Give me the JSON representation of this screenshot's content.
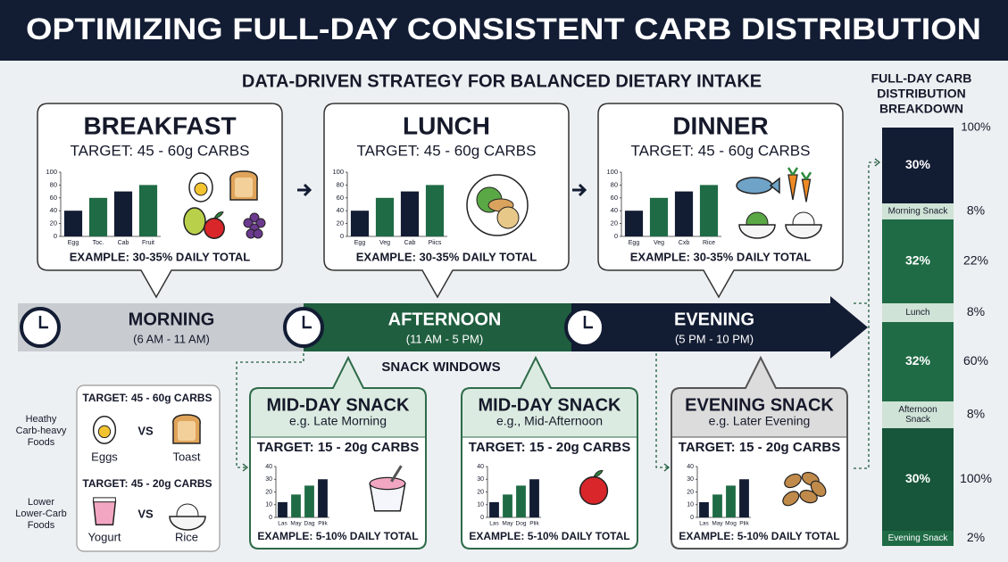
{
  "header": {
    "title": "OPTIMIZING FULL-DAY CONSISTENT CARB DISTRIBUTION"
  },
  "subtitle": "DATA-DRIVEN STRATEGY FOR BALANCED DIETARY INTAKE",
  "meals": [
    {
      "title": "BREAKFAST",
      "target": "TARGET: 45 - 60g CARBS",
      "chart": {
        "categories": [
          "Egg",
          "Toc.",
          "Cab",
          "Fruit"
        ],
        "values": [
          40,
          60,
          70,
          80
        ],
        "colors": [
          "#121c33",
          "#1f6b45",
          "#121c33",
          "#1f6b45"
        ],
        "ylim": [
          0,
          100
        ],
        "yticks": [
          0,
          20,
          40,
          60,
          80,
          100
        ]
      },
      "example": "EXAMPLE: 30-35% DAILY TOTAL"
    },
    {
      "title": "LUNCH",
      "target": "TARGET: 45 - 60g CARBS",
      "chart": {
        "categories": [
          "Egg",
          "Veg",
          "Cab",
          "Piics"
        ],
        "values": [
          40,
          60,
          70,
          80
        ],
        "colors": [
          "#121c33",
          "#1f6b45",
          "#121c33",
          "#1f6b45"
        ],
        "ylim": [
          0,
          100
        ],
        "yticks": [
          0,
          20,
          40,
          60,
          80,
          100
        ]
      },
      "example": "EXAMPLE: 30-35% DAILY TOTAL"
    },
    {
      "title": "DINNER",
      "target": "TARGET: 45 - 60g CARBS",
      "chart": {
        "categories": [
          "Egg",
          "Veg",
          "Cxb",
          "Rice"
        ],
        "values": [
          40,
          60,
          70,
          80
        ],
        "colors": [
          "#121c33",
          "#1f6b45",
          "#121c33",
          "#1f6b45"
        ],
        "ylim": [
          0,
          100
        ],
        "yticks": [
          0,
          20,
          40,
          60,
          80,
          100
        ]
      },
      "example": "EXAMPLE: 30-35% DAILY TOTAL"
    }
  ],
  "timeline": [
    {
      "label": "MORNING",
      "time": "(6 AM - 11 AM)"
    },
    {
      "label": "AFTERNOON",
      "time": "(11 AM - 5 PM)"
    },
    {
      "label": "EVENING",
      "time": "(5 PM - 10 PM)"
    }
  ],
  "snack_windows": "SNACK WINDOWS",
  "comparison": {
    "rows": [
      {
        "label": [
          "Heathy",
          "Carb-heavy",
          "Foods"
        ],
        "target": "TARGET:  45 - 60g CARBS",
        "left": "Eggs",
        "vs": "VS",
        "right": "Toast"
      },
      {
        "label": [
          "Lower",
          "Lower-Carb",
          "Foods"
        ],
        "target": "TARGET:  45 - 20g CARBS",
        "left": "Yogurt",
        "vs": "VS",
        "right": "Rice"
      }
    ]
  },
  "snacks": [
    {
      "title": "MID-DAY SNACK",
      "subtitle": "e.g. Late Morning",
      "target": "TARGET: 15 - 20g CARBS",
      "chart": {
        "categories": [
          "Las",
          "May",
          "Dag",
          "Plik"
        ],
        "values": [
          12,
          18,
          25,
          30
        ],
        "colors": [
          "#121c33",
          "#1f6b45",
          "#1f6b45",
          "#121c33"
        ],
        "ylim": [
          0,
          40
        ],
        "yticks": [
          0,
          10,
          20,
          30,
          40
        ]
      },
      "example": "EXAMPLE: 5-10% DAILY TOTAL"
    },
    {
      "title": "MID-DAY SNACK",
      "subtitle": "e.g., Mid-Afternoon",
      "target": "TARGET: 15 - 20g CARBS",
      "chart": {
        "categories": [
          "Las",
          "May",
          "Dog",
          "Plik"
        ],
        "values": [
          12,
          18,
          25,
          30
        ],
        "colors": [
          "#121c33",
          "#1f6b45",
          "#1f6b45",
          "#121c33"
        ],
        "ylim": [
          0,
          40
        ],
        "yticks": [
          0,
          10,
          20,
          30,
          40
        ]
      },
      "example": "EXAMPLE: 5-10% DAILY TOTAL"
    },
    {
      "title": "EVENING SNACK",
      "subtitle": "e.g. Later Evening",
      "target": "TARGET: 15 - 20g CARBS",
      "chart": {
        "categories": [
          "Las",
          "May",
          "Mog",
          "Plik"
        ],
        "values": [
          12,
          18,
          25,
          30
        ],
        "colors": [
          "#121c33",
          "#1f6b45",
          "#1f6b45",
          "#121c33"
        ],
        "ylim": [
          0,
          40
        ],
        "yticks": [
          0,
          10,
          20,
          30,
          40
        ]
      },
      "example": "EXAMPLE: 5-10% DAILY TOTAL"
    }
  ],
  "breakdown": {
    "title": [
      "FULL-DAY CARB",
      "DISTRIBUTION",
      "BREAKDOWN"
    ],
    "top_label": "100%",
    "segments": [
      {
        "label": [
          "30%"
        ]
      },
      {
        "label": [
          "Morning Snack"
        ],
        "side": "8%"
      },
      {
        "label": [
          "32%"
        ],
        "side": "22%"
      },
      {
        "label": [
          "Lunch"
        ],
        "side": "8%"
      },
      {
        "label": [
          "32%"
        ],
        "side": "60%"
      },
      {
        "label": [
          "Afternoon",
          "Snack"
        ],
        "side": "8%"
      },
      {
        "label": [
          "30%"
        ],
        "side": "100%"
      },
      {
        "label": [
          "Evening Snack"
        ],
        "side": "2%"
      }
    ]
  }
}
